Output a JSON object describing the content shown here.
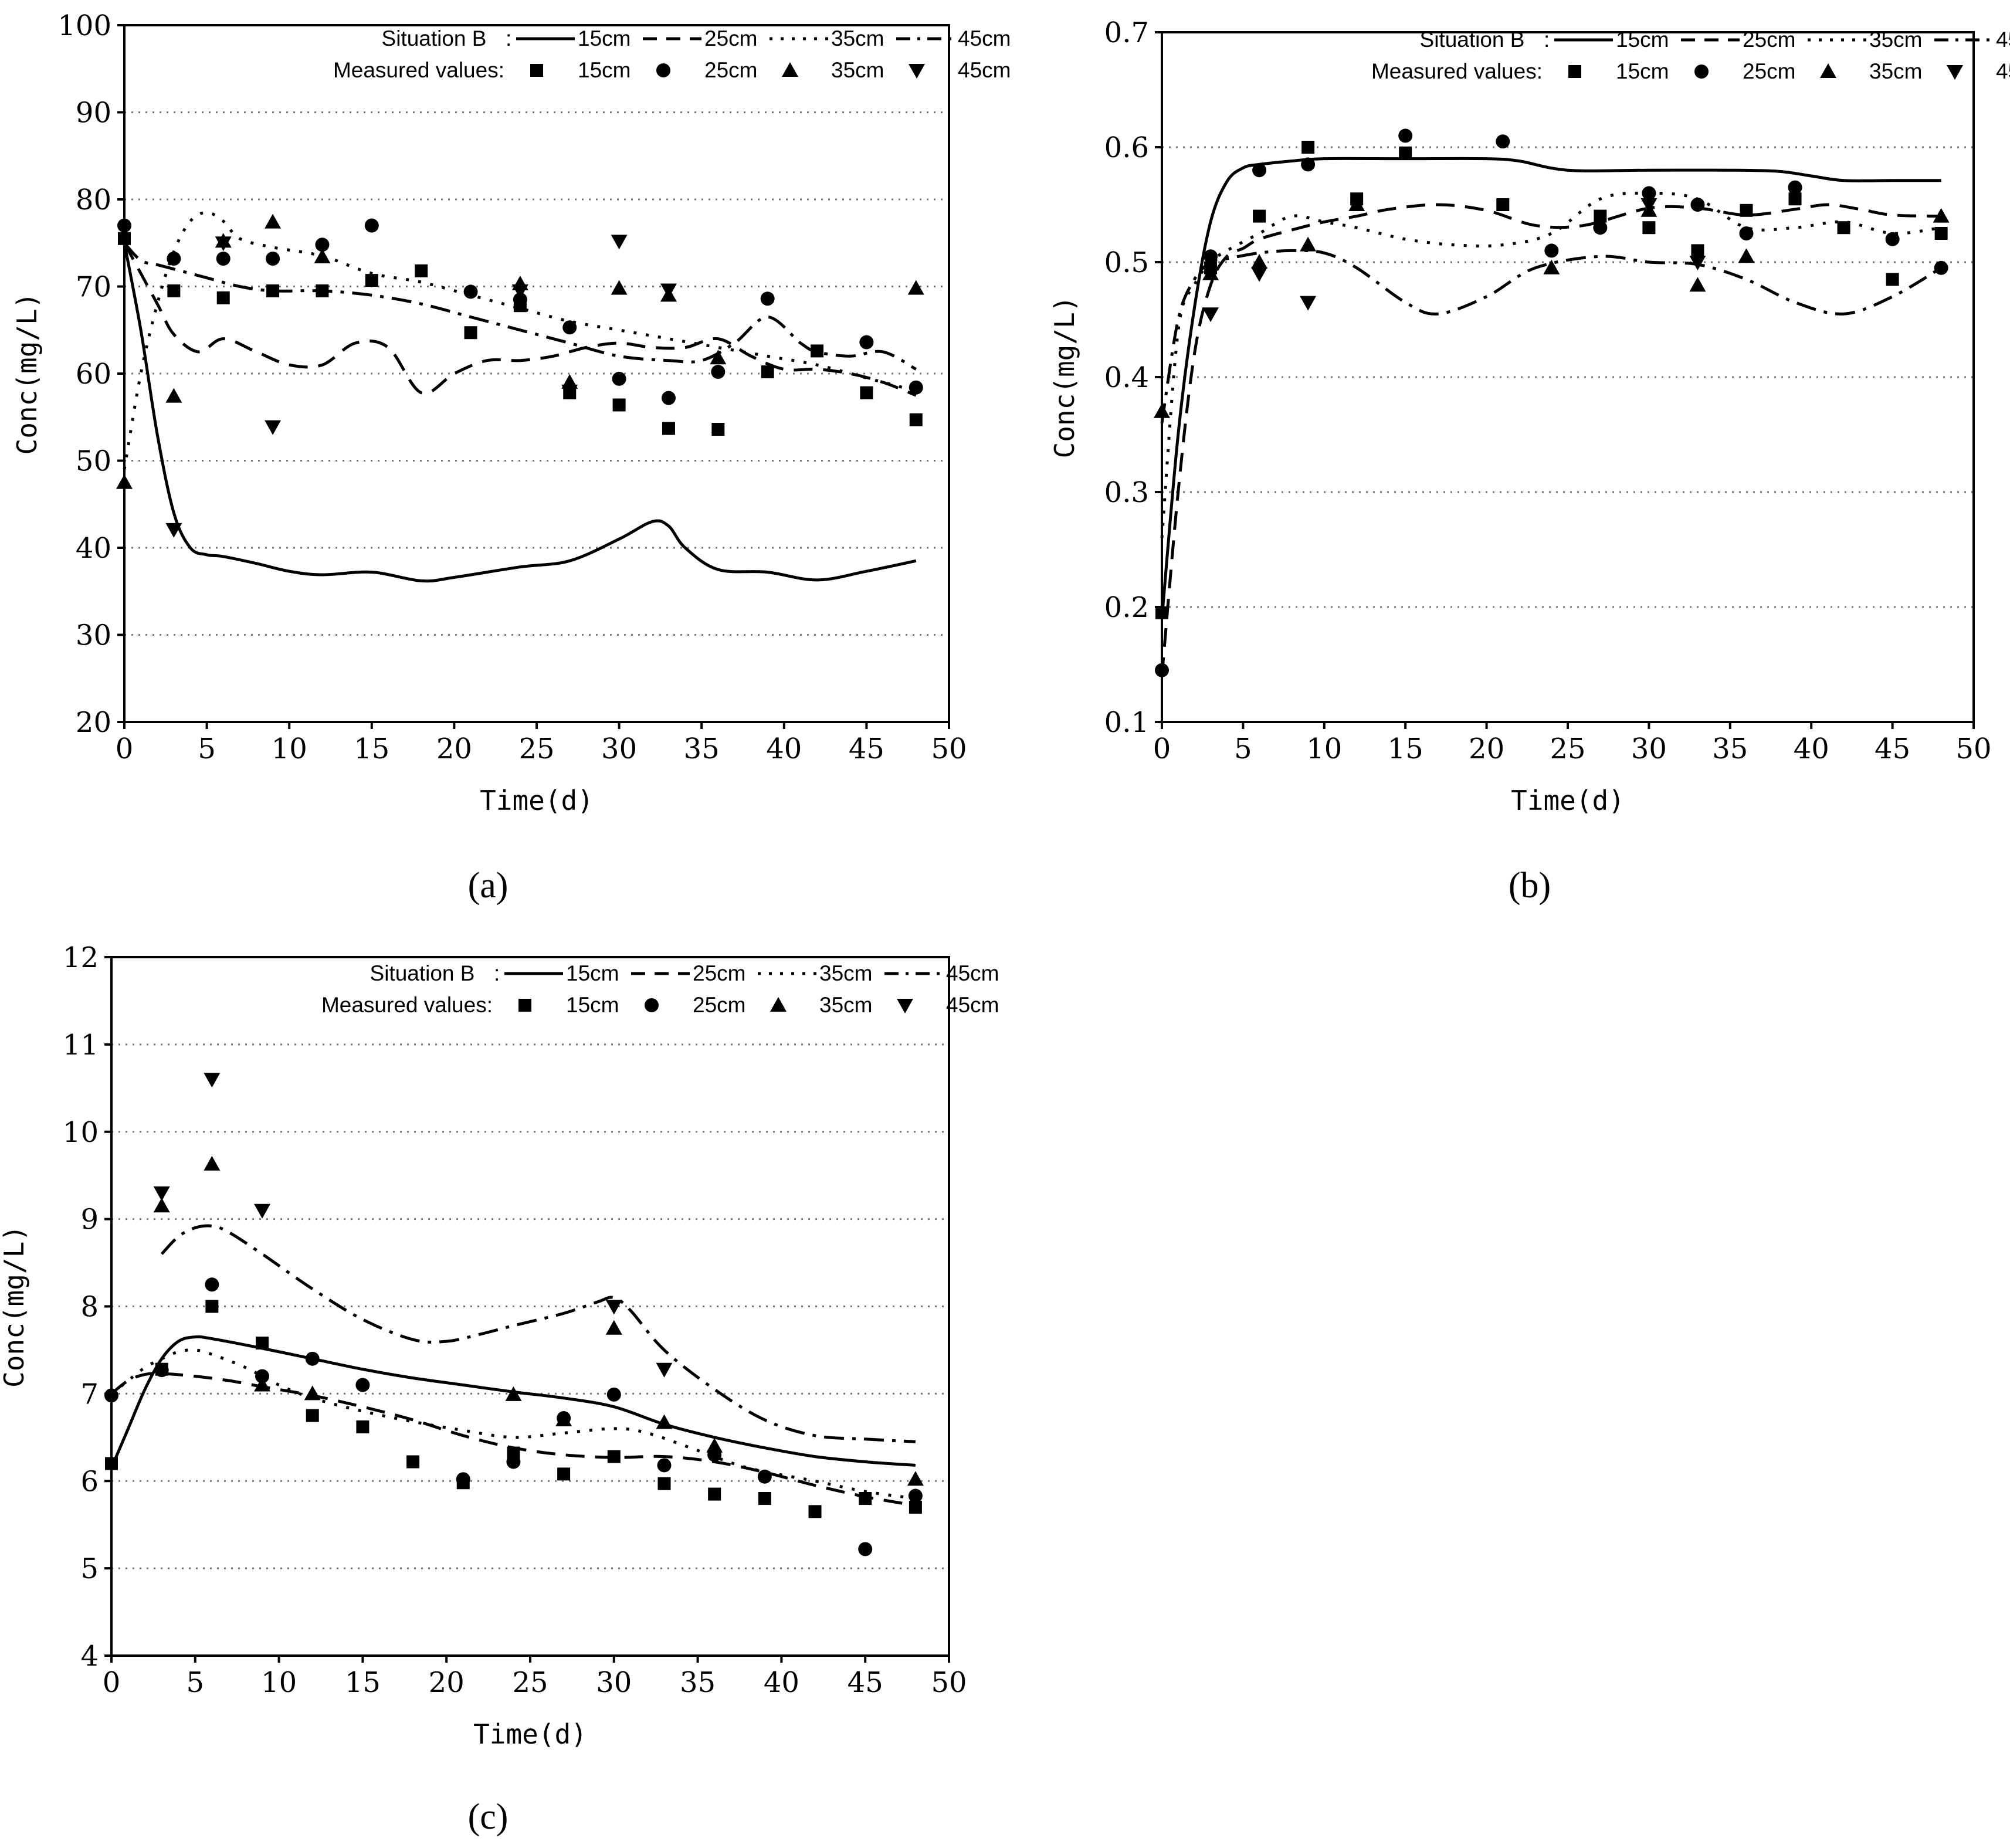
{
  "legend": {
    "model_label": "Situation B",
    "measured_label": "Measured values:",
    "depths": [
      "15cm",
      "25cm",
      "35cm",
      "45cm"
    ]
  },
  "chart_data": [
    {
      "type": "line",
      "panel": "(a)",
      "xlabel": "Time(d)",
      "ylabel": "Conc(mg/L)",
      "xlim": [
        0,
        50
      ],
      "ylim": [
        20,
        100
      ],
      "xticks": [
        0,
        5,
        10,
        15,
        20,
        25,
        30,
        35,
        40,
        45,
        50
      ],
      "yticks": [
        20,
        30,
        40,
        50,
        60,
        70,
        80,
        90,
        100
      ],
      "grid": "horizontal dotted",
      "legend_position": "top",
      "series": [
        {
          "name": "Situation B 15cm",
          "style": "solid",
          "x": [
            0,
            1,
            2,
            3,
            4,
            5,
            6,
            8,
            10,
            12,
            15,
            18,
            20,
            24,
            27,
            30,
            32,
            33,
            34,
            36,
            39,
            42,
            45,
            48
          ],
          "y": [
            75,
            65,
            53,
            44,
            40,
            39.2,
            39,
            38.2,
            37.3,
            36.9,
            37.2,
            36.2,
            36.6,
            37.8,
            38.5,
            41,
            43,
            42.5,
            40,
            37.5,
            37.2,
            36.3,
            37.3,
            38.5
          ]
        },
        {
          "name": "Situation B 25cm",
          "style": "dashed",
          "x": [
            0,
            2,
            3,
            4.5,
            6,
            8,
            10,
            12,
            14,
            16,
            18,
            20,
            22,
            24,
            26,
            28,
            30,
            32,
            34,
            36,
            38,
            40,
            42,
            44,
            46,
            48
          ],
          "y": [
            75,
            68,
            64.5,
            62.5,
            64,
            62.5,
            61,
            61,
            63.5,
            63,
            57.8,
            60,
            61.5,
            61.5,
            62,
            63,
            63.5,
            63,
            63,
            64,
            62,
            60.5,
            60.5,
            60,
            59,
            57.5
          ]
        },
        {
          "name": "Situation B 35cm",
          "style": "dotted",
          "x": [
            0,
            1,
            2,
            3,
            4,
            5,
            6,
            7,
            9,
            12,
            15,
            18,
            21,
            24,
            27,
            30,
            33,
            36,
            39,
            42,
            45,
            48
          ],
          "y": [
            49,
            60,
            68,
            74,
            77.5,
            78.5,
            77.5,
            75.5,
            74.5,
            73.5,
            71.5,
            70.5,
            69,
            67.5,
            66,
            65,
            64,
            63,
            62,
            61,
            59.5,
            58
          ]
        },
        {
          "name": "Situation B 45cm",
          "style": "dashdot",
          "x": [
            0,
            1,
            2,
            3,
            5,
            7,
            9,
            12,
            15,
            18,
            21,
            24,
            27,
            30,
            33,
            35,
            37,
            39,
            41,
            42,
            44,
            46,
            48
          ],
          "y": [
            75,
            73,
            72.5,
            72,
            71,
            70,
            69.5,
            69.5,
            69,
            68,
            66.5,
            65,
            63.5,
            62,
            61.5,
            61.5,
            63.5,
            66.5,
            63.5,
            62.5,
            62,
            62.5,
            60.5
          ]
        }
      ],
      "measured": [
        {
          "name": "15cm",
          "marker": "square",
          "x": [
            0,
            3,
            6,
            9,
            12,
            15,
            18,
            21,
            24,
            27,
            30,
            33,
            36,
            39,
            42,
            45,
            48
          ],
          "y": [
            75.5,
            69.5,
            68.7,
            69.5,
            69.5,
            70.7,
            71.8,
            64.7,
            67.8,
            57.8,
            56.4,
            53.7,
            53.6,
            60.2,
            62.6,
            57.8,
            54.7
          ]
        },
        {
          "name": "25cm",
          "marker": "circle",
          "x": [
            0,
            3,
            6,
            9,
            12,
            15,
            21,
            24,
            27,
            30,
            33,
            36,
            39,
            45,
            48
          ],
          "y": [
            77,
            73.2,
            73.2,
            73.2,
            74.8,
            77,
            69.4,
            68.5,
            65.3,
            59.4,
            57.2,
            60.2,
            68.6,
            63.6,
            58.4
          ]
        },
        {
          "name": "35cm",
          "marker": "triangle-up",
          "x": [
            0,
            3,
            6,
            9,
            12,
            24,
            27,
            30,
            33,
            36,
            48
          ],
          "y": [
            47.5,
            57.4,
            75.2,
            77.4,
            73.4,
            70.3,
            59,
            69.8,
            69,
            61.8,
            69.8
          ]
        },
        {
          "name": "45cm",
          "marker": "triangle-down",
          "x": [
            3,
            6,
            9,
            24,
            27,
            30,
            33
          ],
          "y": [
            42.1,
            75,
            53.9,
            69.5,
            58,
            75.2,
            69.6
          ]
        }
      ]
    },
    {
      "type": "line",
      "panel": "(b)",
      "xlabel": "Time(d)",
      "ylabel": "Conc(mg/L)",
      "xlim": [
        0,
        50
      ],
      "ylim": [
        0.1,
        0.7
      ],
      "xticks": [
        0,
        5,
        10,
        15,
        20,
        25,
        30,
        35,
        40,
        45,
        50
      ],
      "yticks": [
        0.1,
        0.2,
        0.3,
        0.4,
        0.5,
        0.6,
        0.7
      ],
      "grid": "horizontal dotted",
      "legend_position": "top",
      "series": [
        {
          "name": "Situation B 15cm",
          "style": "solid",
          "x": [
            0,
            1,
            2,
            3,
            4,
            5,
            6,
            8,
            10,
            15,
            20,
            22,
            25,
            30,
            35,
            38,
            40,
            42,
            45,
            48
          ],
          "y": [
            0.19,
            0.35,
            0.46,
            0.535,
            0.57,
            0.582,
            0.585,
            0.588,
            0.59,
            0.59,
            0.59,
            0.588,
            0.58,
            0.58,
            0.58,
            0.579,
            0.575,
            0.571,
            0.571,
            0.571
          ]
        },
        {
          "name": "Situation B 25cm",
          "style": "dashed",
          "x": [
            0,
            1,
            2,
            3,
            4,
            5,
            6,
            8,
            10,
            12,
            14,
            17,
            20,
            23,
            26,
            30,
            33,
            36,
            39,
            41,
            43,
            45,
            48
          ],
          "y": [
            0.14,
            0.3,
            0.42,
            0.48,
            0.505,
            0.512,
            0.52,
            0.528,
            0.535,
            0.54,
            0.546,
            0.55,
            0.545,
            0.532,
            0.532,
            0.547,
            0.547,
            0.541,
            0.546,
            0.55,
            0.546,
            0.541,
            0.54
          ]
        },
        {
          "name": "Situation B 35cm",
          "style": "dotted",
          "x": [
            0,
            1,
            2,
            3,
            4,
            6,
            8,
            10,
            12,
            15,
            18,
            21,
            24,
            27,
            30,
            33,
            36,
            39,
            42,
            45,
            48
          ],
          "y": [
            0.26,
            0.44,
            0.48,
            0.5,
            0.51,
            0.525,
            0.54,
            0.535,
            0.53,
            0.52,
            0.515,
            0.515,
            0.525,
            0.555,
            0.56,
            0.555,
            0.53,
            0.53,
            0.535,
            0.525,
            0.53
          ]
        },
        {
          "name": "Situation B 45cm",
          "style": "dashdot",
          "x": [
            0,
            1,
            2,
            3,
            4,
            6,
            8,
            10,
            12,
            15,
            17,
            20,
            23,
            27,
            30,
            33,
            36,
            39,
            42,
            45,
            48
          ],
          "y": [
            0.36,
            0.45,
            0.485,
            0.5,
            0.503,
            0.508,
            0.51,
            0.508,
            0.495,
            0.465,
            0.455,
            0.47,
            0.495,
            0.505,
            0.5,
            0.498,
            0.485,
            0.465,
            0.455,
            0.47,
            0.495
          ]
        }
      ],
      "measured": [
        {
          "name": "15cm",
          "marker": "square",
          "x": [
            0,
            3,
            6,
            9,
            12,
            15,
            21,
            27,
            30,
            33,
            36,
            39,
            42,
            45,
            48
          ],
          "y": [
            0.195,
            0.495,
            0.54,
            0.6,
            0.555,
            0.595,
            0.55,
            0.54,
            0.53,
            0.51,
            0.545,
            0.555,
            0.53,
            0.485,
            0.525
          ]
        },
        {
          "name": "25cm",
          "marker": "circle",
          "x": [
            0,
            3,
            6,
            9,
            15,
            21,
            24,
            27,
            30,
            33,
            36,
            39,
            45,
            48
          ],
          "y": [
            0.145,
            0.505,
            0.58,
            0.585,
            0.61,
            0.605,
            0.51,
            0.53,
            0.56,
            0.55,
            0.525,
            0.565,
            0.52,
            0.495
          ]
        },
        {
          "name": "35cm",
          "marker": "triangle-up",
          "x": [
            0,
            3,
            6,
            9,
            12,
            24,
            30,
            33,
            36,
            48
          ],
          "y": [
            0.37,
            0.49,
            0.5,
            0.515,
            0.55,
            0.495,
            0.545,
            0.48,
            0.505,
            0.54
          ]
        },
        {
          "name": "45cm",
          "marker": "triangle-down",
          "x": [
            3,
            6,
            9,
            30,
            33
          ],
          "y": [
            0.455,
            0.49,
            0.465,
            0.55,
            0.5
          ]
        }
      ]
    },
    {
      "type": "line",
      "panel": "(c)",
      "xlabel": "Time(d)",
      "ylabel": "Conc(mg/L)",
      "xlim": [
        0,
        50
      ],
      "ylim": [
        4,
        12
      ],
      "xticks": [
        0,
        5,
        10,
        15,
        20,
        25,
        30,
        35,
        40,
        45,
        50
      ],
      "yticks": [
        4,
        5,
        6,
        7,
        8,
        9,
        10,
        11,
        12
      ],
      "grid": "horizontal dotted",
      "legend_position": "top",
      "series": [
        {
          "name": "Situation B 15cm",
          "style": "solid",
          "x": [
            0,
            1,
            2,
            3,
            4,
            5,
            6,
            9,
            12,
            15,
            18,
            21,
            24,
            27,
            30,
            33,
            36,
            39,
            42,
            45,
            48
          ],
          "y": [
            6.15,
            6.6,
            7.05,
            7.4,
            7.6,
            7.65,
            7.63,
            7.52,
            7.4,
            7.28,
            7.18,
            7.1,
            7.02,
            6.95,
            6.85,
            6.65,
            6.5,
            6.38,
            6.28,
            6.22,
            6.18
          ]
        },
        {
          "name": "Situation B 25cm",
          "style": "dashed",
          "x": [
            0,
            1,
            2,
            3,
            5,
            7,
            9,
            12,
            15,
            18,
            21,
            24,
            27,
            30,
            33,
            36,
            39,
            42,
            45,
            48
          ],
          "y": [
            7.0,
            7.15,
            7.22,
            7.23,
            7.2,
            7.15,
            7.08,
            6.98,
            6.85,
            6.7,
            6.52,
            6.38,
            6.3,
            6.27,
            6.28,
            6.22,
            6.1,
            5.95,
            5.82,
            5.72
          ]
        },
        {
          "name": "Situation B 35cm",
          "style": "dotted",
          "x": [
            0,
            1,
            2,
            3,
            4,
            5,
            6,
            8,
            10,
            12,
            15,
            18,
            21,
            24,
            27,
            30,
            32,
            35,
            38,
            42,
            45,
            48
          ],
          "y": [
            7.0,
            7.15,
            7.3,
            7.4,
            7.48,
            7.5,
            7.45,
            7.3,
            7.1,
            6.95,
            6.8,
            6.68,
            6.58,
            6.5,
            6.55,
            6.6,
            6.55,
            6.35,
            6.15,
            6.0,
            5.88,
            5.8
          ]
        },
        {
          "name": "Situation B 45cm",
          "style": "dashdot",
          "x": [
            3,
            4,
            5,
            6,
            7,
            9,
            12,
            15,
            18,
            20,
            22,
            24,
            27,
            29,
            30,
            31,
            33,
            36,
            39,
            42,
            45,
            48
          ],
          "y": [
            8.6,
            8.8,
            8.9,
            8.92,
            8.85,
            8.6,
            8.2,
            7.85,
            7.62,
            7.6,
            7.68,
            7.78,
            7.92,
            8.05,
            8.1,
            7.95,
            7.5,
            7.05,
            6.7,
            6.52,
            6.48,
            6.45
          ]
        }
      ],
      "measured": [
        {
          "name": "15cm",
          "marker": "square",
          "x": [
            0,
            3,
            6,
            9,
            12,
            15,
            18,
            21,
            24,
            27,
            30,
            33,
            36,
            39,
            42,
            45,
            48
          ],
          "y": [
            6.2,
            7.28,
            8.0,
            7.58,
            6.75,
            6.62,
            6.22,
            5.98,
            6.32,
            6.08,
            6.28,
            5.97,
            5.85,
            5.8,
            5.65,
            5.8,
            5.7
          ]
        },
        {
          "name": "25cm",
          "marker": "circle",
          "x": [
            0,
            3,
            6,
            9,
            12,
            15,
            21,
            24,
            27,
            30,
            33,
            36,
            39,
            45,
            48
          ],
          "y": [
            6.98,
            7.27,
            8.25,
            7.2,
            7.4,
            7.1,
            6.02,
            6.22,
            6.72,
            6.99,
            6.18,
            6.3,
            6.05,
            5.22,
            5.83
          ]
        },
        {
          "name": "35cm",
          "marker": "triangle-up",
          "x": [
            3,
            6,
            9,
            12,
            24,
            27,
            30,
            33,
            36,
            48
          ],
          "y": [
            9.15,
            9.63,
            7.1,
            7.0,
            6.99,
            6.7,
            7.75,
            6.67,
            6.4,
            6.02
          ]
        },
        {
          "name": "45cm",
          "marker": "triangle-down",
          "x": [
            3,
            6,
            9,
            30,
            33
          ],
          "y": [
            9.3,
            10.6,
            9.1,
            8.0,
            7.28
          ]
        }
      ]
    }
  ]
}
